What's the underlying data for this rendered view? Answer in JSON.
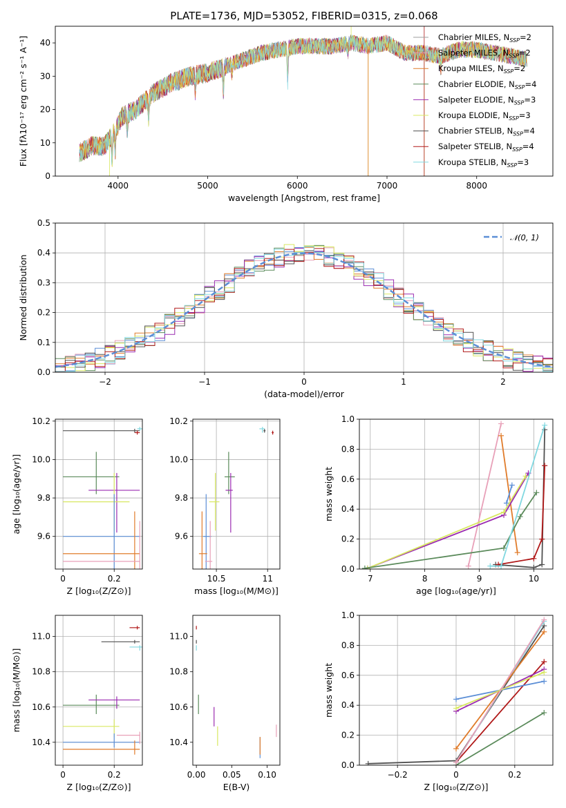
{
  "figure": {
    "title": "PLATE=1736, MJD=53052, FIBERID=0315, z=0.068",
    "models": [
      {
        "name": "Chabrier MILES",
        "nssp": "2",
        "color": "#9e9e9e"
      },
      {
        "name": "Salpeter MILES",
        "nssp": "2",
        "color": "#e8a0b8"
      },
      {
        "name": "Kroupa MILES",
        "nssp": "2",
        "color": "#e07b2a"
      },
      {
        "name": "Chabrier ELODIE",
        "nssp": "4",
        "color": "#5a8a5a"
      },
      {
        "name": "Salpeter ELODIE",
        "nssp": "3",
        "color": "#9a2bb0"
      },
      {
        "name": "Kroupa ELODIE",
        "nssp": "3",
        "color": "#d8e860"
      },
      {
        "name": "Chabrier STELIB",
        "nssp": "4",
        "color": "#505050"
      },
      {
        "name": "Salpeter STELIB",
        "nssp": "4",
        "color": "#b01818"
      },
      {
        "name": "Kroupa STELIB",
        "nssp": "3",
        "color": "#80d8e0"
      }
    ]
  },
  "chart_data": [
    {
      "id": "spectrum",
      "type": "line",
      "xlabel": "wavelength [Angstrom, rest frame]",
      "ylabel": "Flux [fλ10⁻¹⁷ erg cm⁻² s⁻¹ A⁻¹]",
      "xlim": [
        3300,
        8850
      ],
      "ylim": [
        0,
        45
      ],
      "xticks": [
        4000,
        5000,
        6000,
        7000,
        8000
      ],
      "yticks": [
        0,
        10,
        20,
        30,
        40
      ],
      "legend_position": "right",
      "continuum": {
        "x": [
          3570,
          3700,
          3850,
          3950,
          4050,
          4200,
          4400,
          4600,
          4800,
          5000,
          5200,
          5400,
          5600,
          5800,
          6000,
          6200,
          6400,
          6600,
          6800,
          7000,
          7200,
          7400,
          7600,
          7800,
          8000,
          8200,
          8400,
          8560
        ],
        "y": [
          7,
          9,
          9,
          13,
          18,
          20,
          25,
          28,
          30,
          31,
          33,
          35,
          37,
          38,
          39,
          39,
          39,
          40,
          39,
          40,
          37,
          37,
          36,
          38,
          38,
          37,
          36,
          35
        ]
      }
    },
    {
      "id": "residuals",
      "type": "line",
      "xlabel": "(data-model)/error",
      "ylabel": "Normed distribution",
      "xlim": [
        -2.5,
        2.5
      ],
      "ylim": [
        0,
        0.5
      ],
      "xticks": [
        -2,
        -1,
        0,
        1,
        2
      ],
      "yticks": [
        0.0,
        0.1,
        0.2,
        0.3,
        0.4,
        0.5
      ],
      "reference_label": "𝒩(0, 1)",
      "reference": {
        "mu": 0,
        "sigma": 1,
        "color": "#5b8ed6"
      },
      "grid": true,
      "legend_position": "top-right"
    },
    {
      "id": "age_vs_Z",
      "type": "scatter",
      "xlabel": "Z [log₁₀(Z/Z⊙)]",
      "ylabel": "age  [log₁₀(age/yr)]",
      "xlim": [
        -0.03,
        0.31
      ],
      "ylim": [
        9.43,
        10.21
      ],
      "xticks": [
        0.0,
        0.2
      ],
      "yticks": [
        9.6,
        9.8,
        10.0,
        10.2
      ],
      "grid": true,
      "points": [
        {
          "x": 0.28,
          "y": 10.15,
          "xerr": [
            0.28,
            0.02
          ],
          "yerr": [
            0.01,
            0.01
          ],
          "color": "#505050"
        },
        {
          "x": 0.29,
          "y": 10.14,
          "xerr": [
            0.01,
            0.01
          ],
          "yerr": [
            0.01,
            0.01
          ],
          "color": "#b01818"
        },
        {
          "x": 0.3,
          "y": 10.16,
          "xerr": [
            0.01,
            0.01
          ],
          "yerr": [
            0.01,
            0.01
          ],
          "color": "#80d8e0"
        },
        {
          "x": 0.13,
          "y": 9.91,
          "xerr": [
            0.13,
            0.09
          ],
          "yerr": [
            0.09,
            0.13
          ],
          "color": "#5a8a5a"
        },
        {
          "x": 0.21,
          "y": 9.84,
          "xerr": [
            0.11,
            0.09
          ],
          "yerr": [
            0.22,
            0.09
          ],
          "color": "#9a2bb0"
        },
        {
          "x": 0.2,
          "y": 9.78,
          "xerr": [
            0.2,
            0.06
          ],
          "yerr": [
            0.15,
            0.15
          ],
          "color": "#d8e860"
        },
        {
          "x": 0.2,
          "y": 9.6,
          "xerr": [
            0.2,
            0.1
          ],
          "yerr": [
            0.17,
            0.22
          ],
          "color": "#5b8ed6"
        },
        {
          "x": 0.28,
          "y": 9.51,
          "xerr": [
            0.28,
            0.02
          ],
          "yerr": [
            0.11,
            0.22
          ],
          "color": "#e07b2a"
        },
        {
          "x": 0.3,
          "y": 9.47,
          "xerr": [
            0.3,
            0.0
          ],
          "yerr": [
            0.04,
            0.21
          ],
          "color": "#e8a0b8"
        }
      ]
    },
    {
      "id": "age_vs_mass",
      "type": "scatter",
      "xlabel": "mass [log₁₀(M/M⊙)]",
      "ylabel": "",
      "xlim": [
        10.27,
        11.12
      ],
      "ylim": [
        9.43,
        10.21
      ],
      "xticks": [
        10.5,
        11.0
      ],
      "yticks": [
        9.6,
        9.8,
        10.0,
        10.2
      ],
      "grid": true,
      "points": [
        {
          "x": 10.97,
          "y": 10.15,
          "xerr": [
            0.01,
            0.01
          ],
          "yerr": [
            0.01,
            0.01
          ],
          "color": "#505050"
        },
        {
          "x": 11.05,
          "y": 10.14,
          "xerr": [
            0.01,
            0.01
          ],
          "yerr": [
            0.01,
            0.01
          ],
          "color": "#b01818"
        },
        {
          "x": 10.95,
          "y": 10.16,
          "xerr": [
            0.03,
            0.02
          ],
          "yerr": [
            0.02,
            0.01
          ],
          "color": "#80d8e0"
        },
        {
          "x": 10.62,
          "y": 9.91,
          "xerr": [
            0.04,
            0.06
          ],
          "yerr": [
            0.09,
            0.13
          ],
          "color": "#5a8a5a"
        },
        {
          "x": 10.64,
          "y": 9.84,
          "xerr": [
            0.05,
            0.02
          ],
          "yerr": [
            0.22,
            0.09
          ],
          "color": "#9a2bb0"
        },
        {
          "x": 10.49,
          "y": 9.78,
          "xerr": [
            0.06,
            0.04
          ],
          "yerr": [
            0.15,
            0.15
          ],
          "color": "#d8e860"
        },
        {
          "x": 10.4,
          "y": 9.6,
          "xerr": [
            0.03,
            0.05
          ],
          "yerr": [
            0.17,
            0.22
          ],
          "color": "#5b8ed6"
        },
        {
          "x": 10.36,
          "y": 9.51,
          "xerr": [
            0.03,
            0.05
          ],
          "yerr": [
            0.11,
            0.22
          ],
          "color": "#e07b2a"
        },
        {
          "x": 10.44,
          "y": 9.47,
          "xerr": [
            0.05,
            0.02
          ],
          "yerr": [
            0.04,
            0.21
          ],
          "color": "#e8a0b8"
        }
      ]
    },
    {
      "id": "massweight_vs_age",
      "type": "line",
      "xlabel": "age  [log₁₀(age/yr)]",
      "ylabel": "mass weight",
      "xlim": [
        6.8,
        10.35
      ],
      "ylim": [
        0,
        1
      ],
      "xticks": [
        7,
        8,
        9,
        10
      ],
      "yticks": [
        0.0,
        0.2,
        0.4,
        0.6,
        0.8,
        1.0
      ],
      "grid": true,
      "series": [
        {
          "x": [
            8.8,
            9.4
          ],
          "y": [
            0.02,
            0.97
          ],
          "color": "#e8a0b8"
        },
        {
          "x": [
            9.4,
            9.7
          ],
          "y": [
            0.89,
            0.11
          ],
          "color": "#e07b2a"
        },
        {
          "x": [
            9.5,
            9.6
          ],
          "y": [
            0.44,
            0.56
          ],
          "color": "#5b8ed6"
        },
        {
          "x": [
            6.95,
            9.45,
            9.9
          ],
          "y": [
            0.005,
            0.36,
            0.64
          ],
          "color": "#9a2bb0"
        },
        {
          "x": [
            6.95,
            9.45,
            9.85
          ],
          "y": [
            0.005,
            0.38,
            0.62
          ],
          "color": "#d8e860"
        },
        {
          "x": [
            6.9,
            9.45,
            9.75,
            10.05
          ],
          "y": [
            0.005,
            0.14,
            0.35,
            0.51
          ],
          "color": "#5a8a5a"
        },
        {
          "x": [
            9.3,
            10.0,
            10.15,
            10.2
          ],
          "y": [
            0.03,
            0.01,
            0.03,
            0.93
          ],
          "color": "#505050"
        },
        {
          "x": [
            9.35,
            10.0,
            10.15,
            10.2
          ],
          "y": [
            0.03,
            0.07,
            0.2,
            0.69
          ],
          "color": "#b01818"
        },
        {
          "x": [
            9.2,
            9.4,
            10.2
          ],
          "y": [
            0.02,
            0.02,
            0.96
          ],
          "color": "#80d8e0"
        }
      ]
    },
    {
      "id": "mass_vs_Z",
      "type": "scatter",
      "xlabel": "Z [log₁₀(Z/Z⊙)]",
      "ylabel": "mass [log₁₀(M/M⊙)]",
      "xlim": [
        -0.03,
        0.31
      ],
      "ylim": [
        10.27,
        11.12
      ],
      "xticks": [
        0.0,
        0.2
      ],
      "yticks": [
        10.4,
        10.6,
        10.8,
        11.0
      ],
      "grid": true,
      "points": [
        {
          "x": 0.28,
          "y": 10.97,
          "xerr": [
            0.13,
            0.02
          ],
          "yerr": [
            0.01,
            0.01
          ],
          "color": "#505050"
        },
        {
          "x": 0.29,
          "y": 11.05,
          "xerr": [
            0.03,
            0.01
          ],
          "yerr": [
            0.01,
            0.01
          ],
          "color": "#b01818"
        },
        {
          "x": 0.3,
          "y": 10.94,
          "xerr": [
            0.04,
            0.01
          ],
          "yerr": [
            0.02,
            0.01
          ],
          "color": "#80d8e0"
        },
        {
          "x": 0.13,
          "y": 10.61,
          "xerr": [
            0.13,
            0.09
          ],
          "yerr": [
            0.05,
            0.06
          ],
          "color": "#5a8a5a"
        },
        {
          "x": 0.21,
          "y": 10.64,
          "xerr": [
            0.11,
            0.09
          ],
          "yerr": [
            0.05,
            0.02
          ],
          "color": "#9a2bb0"
        },
        {
          "x": 0.2,
          "y": 10.49,
          "xerr": [
            0.2,
            0.02
          ],
          "yerr": [
            0.06,
            0.04
          ],
          "color": "#d8e860"
        },
        {
          "x": 0.2,
          "y": 10.4,
          "xerr": [
            0.2,
            0.1
          ],
          "yerr": [
            0.03,
            0.05
          ],
          "color": "#5b8ed6"
        },
        {
          "x": 0.28,
          "y": 10.36,
          "xerr": [
            0.28,
            0.02
          ],
          "yerr": [
            0.03,
            0.05
          ],
          "color": "#e07b2a"
        },
        {
          "x": 0.3,
          "y": 10.44,
          "xerr": [
            0.09,
            0.0
          ],
          "yerr": [
            0.05,
            0.02
          ],
          "color": "#e8a0b8"
        }
      ]
    },
    {
      "id": "mass_vs_ebv",
      "type": "scatter",
      "xlabel": "E(B-V)",
      "ylabel": "",
      "xlim": [
        -0.005,
        0.118
      ],
      "ylim": [
        10.27,
        11.12
      ],
      "xticks": [
        0.0,
        0.05,
        0.1
      ],
      "xticklabels": [
        "0.00",
        "0.05",
        "0.10"
      ],
      "yticks": [
        10.4,
        10.6,
        10.8,
        11.0
      ],
      "grid": false,
      "points": [
        {
          "x": 0.0,
          "y": 10.97,
          "yerr": [
            0.01,
            0.01
          ],
          "color": "#505050"
        },
        {
          "x": 0.0,
          "y": 11.05,
          "yerr": [
            0.01,
            0.01
          ],
          "color": "#b01818"
        },
        {
          "x": 0.0,
          "y": 10.94,
          "yerr": [
            0.02,
            0.01
          ],
          "color": "#80d8e0"
        },
        {
          "x": 0.003,
          "y": 10.61,
          "yerr": [
            0.05,
            0.06
          ],
          "color": "#5a8a5a"
        },
        {
          "x": 0.025,
          "y": 10.55,
          "yerr": [
            0.06,
            0.05
          ],
          "color": "#9a2bb0"
        },
        {
          "x": 0.03,
          "y": 10.44,
          "yerr": [
            0.06,
            0.05
          ],
          "color": "#d8e860"
        },
        {
          "x": 0.09,
          "y": 10.37,
          "yerr": [
            0.06,
            0.06
          ],
          "color": "#5b8ed6"
        },
        {
          "x": 0.09,
          "y": 10.38,
          "yerr": [
            0.05,
            0.05
          ],
          "color": "#e07b2a"
        },
        {
          "x": 0.113,
          "y": 10.47,
          "yerr": [
            0.04,
            0.03
          ],
          "color": "#e8a0b8"
        }
      ]
    },
    {
      "id": "massweight_vs_Z",
      "type": "line",
      "xlabel": "Z [log₁₀(Z/Z⊙)]",
      "ylabel": "mass weight",
      "xlim": [
        -0.33,
        0.33
      ],
      "ylim": [
        0,
        1
      ],
      "xticks": [
        -0.2,
        0.0,
        0.2
      ],
      "yticks": [
        0.0,
        0.2,
        0.4,
        0.6,
        0.8,
        1.0
      ],
      "grid": true,
      "series": [
        {
          "x": [
            -0.3,
            0.0,
            0.3
          ],
          "y": [
            0.01,
            0.03,
            0.93
          ],
          "color": "#505050"
        },
        {
          "x": [
            0.0,
            0.3
          ],
          "y": [
            0.02,
            0.69
          ],
          "color": "#b01818"
        },
        {
          "x": [
            0.0,
            0.3
          ],
          "y": [
            0.02,
            0.96
          ],
          "color": "#80d8e0"
        },
        {
          "x": [
            0.0,
            0.3
          ],
          "y": [
            0.11,
            0.89
          ],
          "color": "#e07b2a"
        },
        {
          "x": [
            0.0,
            0.3
          ],
          "y": [
            0.44,
            0.56
          ],
          "color": "#5b8ed6"
        },
        {
          "x": [
            0.0,
            0.3
          ],
          "y": [
            0.0,
            0.35
          ],
          "color": "#5a8a5a"
        },
        {
          "x": [
            0.0,
            0.3
          ],
          "y": [
            0.36,
            0.64
          ],
          "color": "#9a2bb0"
        },
        {
          "x": [
            0.0,
            0.3
          ],
          "y": [
            0.38,
            0.62
          ],
          "color": "#d8e860"
        },
        {
          "x": [
            0.0,
            0.3
          ],
          "y": [
            0.02,
            0.97
          ],
          "color": "#e8a0b8"
        }
      ]
    }
  ]
}
